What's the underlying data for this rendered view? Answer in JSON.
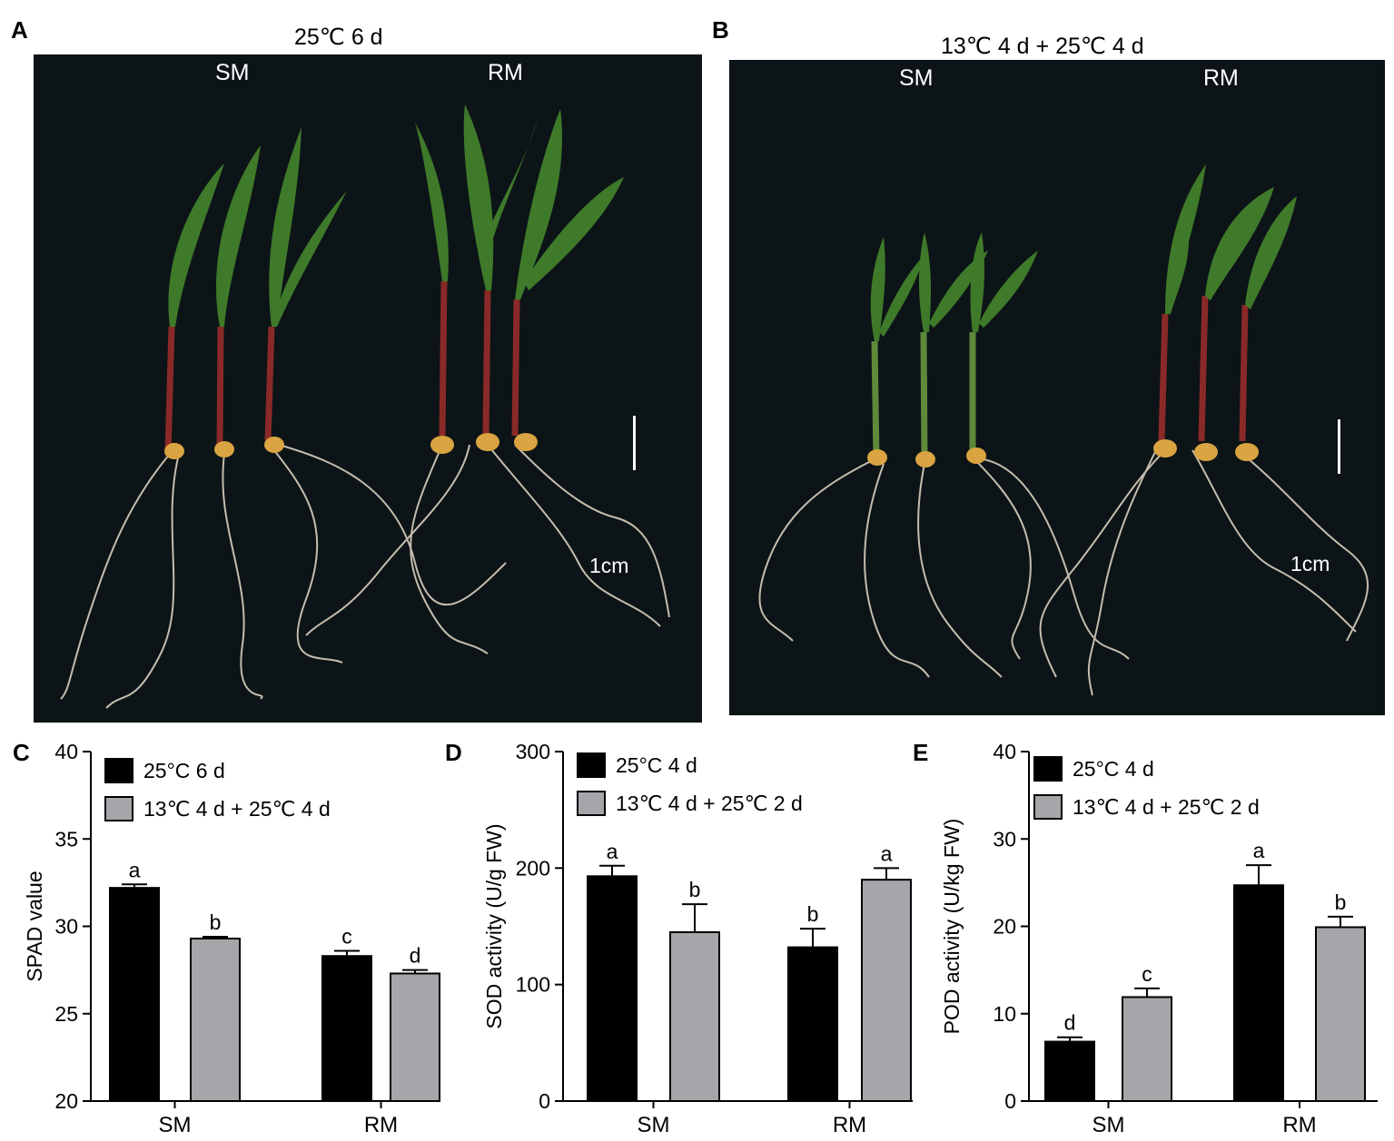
{
  "panels": {
    "A": {
      "letter": "A",
      "title": "25℃ 6 d",
      "left_label": "SM",
      "right_label": "RM",
      "scale_label": "1cm"
    },
    "B": {
      "letter": "B",
      "title": "13℃ 4 d + 25℃ 4 d",
      "left_label": "SM",
      "right_label": "RM",
      "scale_label": "1cm"
    }
  },
  "colors": {
    "photo_background": "#0d1417",
    "leaf": "#3e7a2a",
    "stem_red": "#8a2a28",
    "root": "#d9cfbf",
    "seed": "#d9a441",
    "series_1": "#000000",
    "series_2": "#a6a6aa"
  },
  "chart_data": [
    {
      "panel": "C",
      "type": "bar",
      "title": "",
      "xlabel": "",
      "ylabel": "SPAD value",
      "ylim": [
        20,
        40
      ],
      "yticks": [
        20,
        25,
        30,
        35,
        40
      ],
      "categories": [
        "SM",
        "RM"
      ],
      "series": [
        {
          "name": "25°C 6 d",
          "values": [
            32.2,
            28.3
          ],
          "errors": [
            0.2,
            0.3
          ],
          "letters": [
            "a",
            "c"
          ]
        },
        {
          "name": "13℃ 4 d + 25℃ 4 d",
          "values": [
            29.3,
            27.3
          ],
          "errors": [
            0.1,
            0.2
          ],
          "letters": [
            "b",
            "d"
          ]
        }
      ],
      "legend": "top-left",
      "grid": false
    },
    {
      "panel": "D",
      "type": "bar",
      "title": "",
      "xlabel": "",
      "ylabel": "SOD activity (U/g FW)",
      "ylim": [
        0,
        300
      ],
      "yticks": [
        0,
        100,
        200,
        300
      ],
      "categories": [
        "SM",
        "RM"
      ],
      "series": [
        {
          "name": "25°C 4 d",
          "values": [
            193,
            132
          ],
          "errors": [
            9,
            16
          ],
          "letters": [
            "a",
            "b"
          ]
        },
        {
          "name": "13℃  4 d + 25℃  2 d",
          "values": [
            145,
            190
          ],
          "errors": [
            24,
            10
          ],
          "letters": [
            "b",
            "a"
          ]
        }
      ],
      "legend": "top-left",
      "grid": false
    },
    {
      "panel": "E",
      "type": "bar",
      "title": "",
      "xlabel": "",
      "ylabel": "POD activity (U/kg FW)",
      "ylim": [
        0,
        40
      ],
      "yticks": [
        0,
        10,
        20,
        30,
        40
      ],
      "categories": [
        "SM",
        "RM"
      ],
      "series": [
        {
          "name": "25°C 4 d",
          "values": [
            6.8,
            24.7
          ],
          "errors": [
            0.5,
            2.3
          ],
          "letters": [
            "d",
            "a"
          ]
        },
        {
          "name": "13℃  4 d + 25℃  2 d",
          "values": [
            11.9,
            19.9
          ],
          "errors": [
            1.0,
            1.2
          ],
          "letters": [
            "c",
            "b"
          ]
        }
      ],
      "legend": "top-left",
      "grid": false
    }
  ]
}
